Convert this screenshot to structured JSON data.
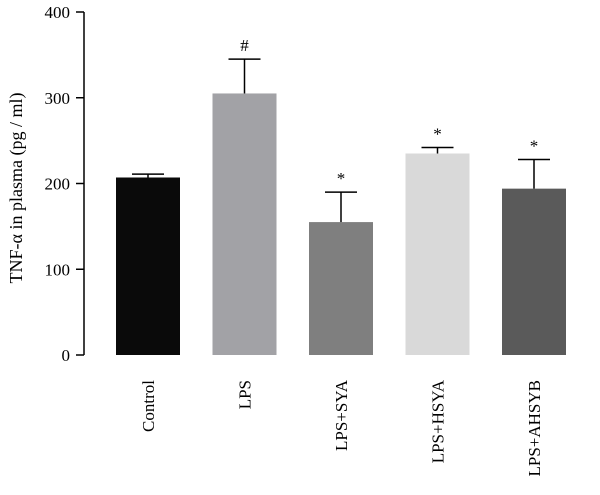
{
  "chart_data": {
    "type": "bar",
    "categories": [
      "Control",
      "LPS",
      "LPS+SYA",
      "LPS+HSYA",
      "LPS+AHSYB"
    ],
    "values": [
      207,
      305,
      155,
      235,
      194
    ],
    "errors": [
      4,
      40,
      35,
      7,
      34
    ],
    "annotations": [
      "",
      "#",
      "*",
      "*",
      "*"
    ],
    "colors": [
      "#0a0a0a",
      "#a2a2a6",
      "#7f7f7f",
      "#d9d9d9",
      "#5a5a5a"
    ],
    "y_ticks": [
      "0",
      "100",
      "200",
      "300",
      "400"
    ],
    "ylim": [
      0,
      400
    ],
    "ylabel": "TNF-α in plasma (pg / ml)",
    "xlabel": "",
    "title": "",
    "grid": false,
    "legend": "none"
  }
}
